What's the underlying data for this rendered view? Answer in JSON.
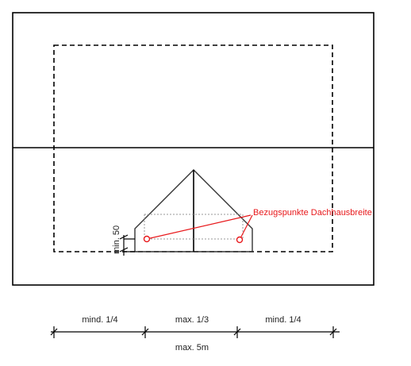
{
  "labels": {
    "reference_points": "Bezugspunkte Dachhausbreite",
    "min_height": "min. 50",
    "min_left": "mind. 1/4",
    "max_middle": "max. 1/3",
    "min_right": "mind. 1/4",
    "max_width": "max. 5m"
  },
  "colors": {
    "line": "#000000",
    "annotation": "#e8191c",
    "hidden_line": "#9a9a9a"
  }
}
